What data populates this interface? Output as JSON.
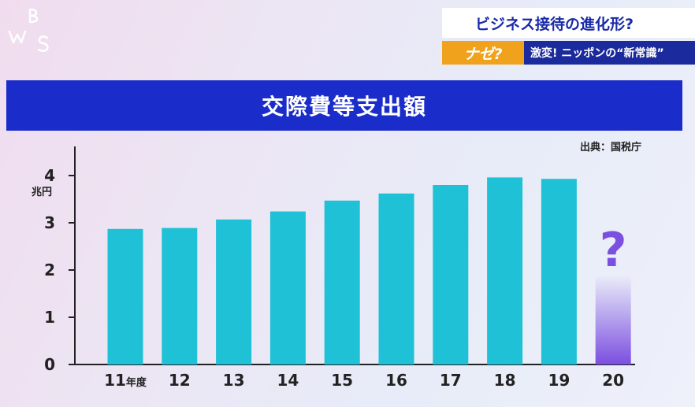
{
  "headline": {
    "main": "ビジネス接待の進化形?",
    "tag": "ナゼ?",
    "sub": "激変! ニッポンの“新常識”"
  },
  "source": "出典：国税庁",
  "colors": {
    "bar": "#1ec1d6",
    "unknown_bar": "#7b4fe0",
    "question_mark": "#7b4fe0",
    "title_bg": "#1a2cc9"
  },
  "chart_data": {
    "type": "bar",
    "title": "交際費等支出額",
    "ylabel": "兆円",
    "ylim": [
      0,
      4.5
    ],
    "yticks": [
      "0",
      "1",
      "2",
      "3",
      "4"
    ],
    "categories": [
      "11",
      "12",
      "13",
      "14",
      "15",
      "16",
      "17",
      "18",
      "19",
      "20"
    ],
    "x_first_suffix": "年度",
    "values": [
      2.87,
      2.89,
      3.07,
      3.24,
      3.47,
      3.62,
      3.8,
      3.96,
      3.93,
      null
    ],
    "unknown_annotation": "?"
  }
}
